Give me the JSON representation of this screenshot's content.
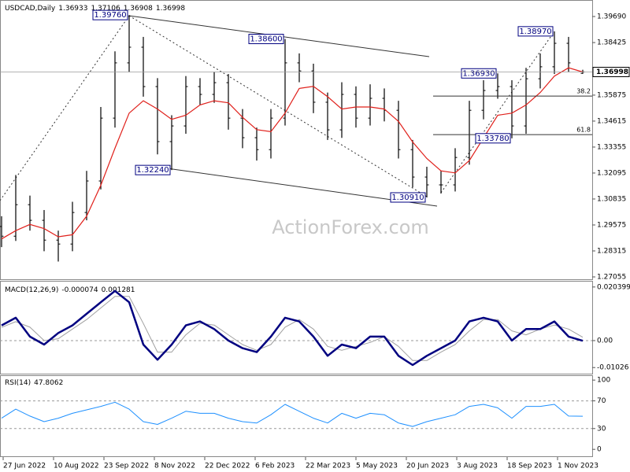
{
  "chart_data": [
    {
      "type": "ohlc",
      "header": {
        "symbol": "USDCAD,Daily",
        "open": 1.36933,
        "high": 1.37106,
        "low": 1.36908,
        "close": 1.36998
      },
      "watermark": "ActionForex.com",
      "x": [
        1,
        10,
        19,
        28,
        37,
        46,
        55,
        64,
        73,
        82,
        91,
        100,
        109,
        118,
        127,
        136,
        145,
        154,
        163,
        172,
        181,
        190,
        199,
        208,
        217,
        226,
        235,
        244,
        253,
        262,
        271,
        280,
        289,
        298,
        307,
        316,
        325,
        334,
        343,
        352,
        361,
        370
      ],
      "xlim": [
        0,
        376
      ],
      "xticks": [
        {
          "value": 2,
          "label": "27 Jun 2022"
        },
        {
          "value": 34,
          "label": "10 Aug 2022"
        },
        {
          "value": 66,
          "label": "23 Sep 2022"
        },
        {
          "value": 98,
          "label": "8 Nov 2022"
        },
        {
          "value": 130,
          "label": "22 Dec 2022"
        },
        {
          "value": 162,
          "label": "6 Feb 2023"
        },
        {
          "value": 194,
          "label": "22 Mar 2023"
        },
        {
          "value": 226,
          "label": "5 May 2023"
        },
        {
          "value": 258,
          "label": "20 Jun 2023"
        },
        {
          "value": 290,
          "label": "3 Aug 2023"
        },
        {
          "value": 322,
          "label": "18 Sep 2023"
        },
        {
          "value": 354,
          "label": "1 Nov 2023"
        }
      ],
      "open": [
        1.295,
        1.2903,
        1.3056,
        1.298,
        1.2884,
        1.2865,
        1.3018,
        1.3171,
        1.3476,
        1.3744,
        1.382,
        1.3629,
        1.3362,
        1.3438,
        1.3629,
        1.3591,
        1.3648,
        1.3476,
        1.3381,
        1.3323,
        1.3476,
        1.3744,
        1.3705,
        1.3553,
        1.3419,
        1.3591,
        1.3476,
        1.3572,
        1.3514,
        1.3323,
        1.319,
        1.3152,
        1.3152,
        1.3285,
        1.3514,
        1.361,
        1.3629,
        1.3438,
        1.3667,
        1.3725,
        1.3839,
        1.36933
      ],
      "high": [
        1.3,
        1.32,
        1.31,
        1.303,
        1.293,
        1.307,
        1.322,
        1.353,
        1.38,
        1.3976,
        1.387,
        1.367,
        1.349,
        1.368,
        1.367,
        1.37,
        1.369,
        1.352,
        1.343,
        1.352,
        1.386,
        1.379,
        1.374,
        1.36,
        1.365,
        1.363,
        1.364,
        1.362,
        1.356,
        1.337,
        1.324,
        1.322,
        1.333,
        1.356,
        1.366,
        1.3693,
        1.366,
        1.372,
        1.379,
        1.3897,
        1.387,
        1.37106
      ],
      "low": [
        1.285,
        1.288,
        1.293,
        1.283,
        1.278,
        1.283,
        1.298,
        1.313,
        1.343,
        1.37,
        1.358,
        1.33,
        1.3224,
        1.34,
        1.354,
        1.355,
        1.342,
        1.333,
        1.327,
        1.328,
        1.344,
        1.365,
        1.35,
        1.337,
        1.338,
        1.343,
        1.344,
        1.346,
        1.328,
        1.314,
        1.3091,
        1.311,
        1.312,
        1.325,
        1.347,
        1.357,
        1.3378,
        1.34,
        1.362,
        1.369,
        1.37,
        1.36908
      ],
      "close": [
        1.2903,
        1.3056,
        1.298,
        1.2884,
        1.2865,
        1.3018,
        1.3171,
        1.3476,
        1.3744,
        1.382,
        1.3629,
        1.3362,
        1.3438,
        1.3629,
        1.3591,
        1.3648,
        1.3476,
        1.3381,
        1.3323,
        1.3476,
        1.3744,
        1.3705,
        1.3553,
        1.3419,
        1.3591,
        1.3476,
        1.3572,
        1.3514,
        1.3323,
        1.319,
        1.3152,
        1.3152,
        1.3285,
        1.3514,
        1.361,
        1.3629,
        1.3438,
        1.3667,
        1.3725,
        1.3839,
        1.3744,
        1.36998
      ],
      "bar_color": "#000000",
      "ma": {
        "color": "#e0201b",
        "values": [
          1.289,
          1.293,
          1.296,
          1.294,
          1.29,
          1.291,
          1.3,
          1.315,
          1.333,
          1.35,
          1.356,
          1.352,
          1.347,
          1.349,
          1.354,
          1.356,
          1.355,
          1.348,
          1.342,
          1.341,
          1.35,
          1.362,
          1.363,
          1.358,
          1.352,
          1.353,
          1.353,
          1.352,
          1.346,
          1.336,
          1.328,
          1.322,
          1.321,
          1.327,
          1.338,
          1.349,
          1.35,
          1.354,
          1.36,
          1.368,
          1.372,
          1.37
        ]
      },
      "ylim": [
        1.2694,
        1.403
      ],
      "yticks": [
        {
          "value": 1.3969,
          "label": "1.39690"
        },
        1.38425,
        1.35875,
        1.34615,
        1.33355,
        1.32095,
        1.30835,
        1.29575,
        1.28315,
        1.27055
      ],
      "annotations": [
        {
          "label": "1.39760",
          "value": 1.3976,
          "x": 82
        },
        {
          "label": "1.38600",
          "value": 1.386,
          "x": 181
        },
        {
          "label": "1.32240",
          "value": 1.3224,
          "x": 109
        },
        {
          "label": "1.30910",
          "value": 1.3091,
          "x": 271
        },
        {
          "label": "1.36930",
          "value": 1.3693,
          "x": 316
        },
        {
          "label": "1.33780",
          "value": 1.3378,
          "x": 325
        },
        {
          "label": "1.38970",
          "value": 1.3897,
          "x": 352
        }
      ],
      "annotation_color": "#000080",
      "levels": [
        {
          "label": "38.2",
          "value": 1.3583
        },
        {
          "label": "61.8",
          "value": 1.3396
        }
      ]
    },
    {
      "type": "line",
      "title": "MACD(12,26,9)",
      "readout": [
        -7.4e-05,
        0.001281
      ],
      "series": [
        {
          "color": "#000080",
          "width": 2.5,
          "values": [
            0.0058,
            0.0087,
            0.0015,
            -0.0015,
            0.0029,
            0.0058,
            0.0102,
            0.0146,
            0.0189,
            0.0146,
            -0.0015,
            -0.0073,
            -0.0015,
            0.0058,
            0.0073,
            0.0044,
            0.0,
            -0.0029,
            -0.0044,
            0.0015,
            0.0087,
            0.0073,
            0.0015,
            -0.0058,
            -0.0015,
            -0.0029,
            0.0015,
            0.0015,
            -0.0058,
            -0.0093,
            -0.0058,
            -0.0029,
            0.0,
            0.0073,
            0.0087,
            0.0073,
            0.0,
            0.0044,
            0.0044,
            0.0073,
            0.0015,
            -7.4e-05
          ]
        },
        {
          "color": "#a0a0a0",
          "width": 1,
          "values": [
            0.005,
            0.0072,
            0.0051,
            0.0,
            0.0007,
            0.0044,
            0.008,
            0.0124,
            0.0168,
            0.0168,
            0.0065,
            -0.0044,
            -0.0044,
            0.0022,
            0.0066,
            0.0059,
            0.0022,
            -0.0015,
            -0.0037,
            -0.0015,
            0.0051,
            0.008,
            0.0044,
            -0.0022,
            -0.0037,
            -0.0022,
            -0.0007,
            0.0015,
            -0.0022,
            -0.0076,
            -0.0076,
            -0.0044,
            -0.0015,
            0.0037,
            0.008,
            0.008,
            0.0037,
            0.0022,
            0.0044,
            0.0059,
            0.0044,
            0.001281
          ]
        }
      ],
      "ylim": [
        -0.01259,
        0.02244
      ],
      "yticks": [
        0.020399,
        {
          "value": 0,
          "label": "0.00"
        },
        -0.01026
      ],
      "levels": [
        0
      ]
    },
    {
      "type": "line",
      "title": "RSI(14)",
      "readout": 47.8062,
      "series": [
        {
          "color": "#1e90ff",
          "width": 1,
          "values": [
            45,
            58,
            48,
            40,
            45,
            52,
            57,
            62,
            68,
            58,
            40,
            36,
            45,
            55,
            52,
            52,
            45,
            40,
            38,
            50,
            65,
            55,
            45,
            38,
            52,
            45,
            52,
            50,
            38,
            33,
            40,
            45,
            50,
            62,
            65,
            60,
            45,
            62,
            62,
            65,
            48,
            47.8062
          ]
        }
      ],
      "ylim": [
        -10,
        107
      ],
      "yticks": [
        100,
        70,
        30,
        0
      ],
      "levels": [
        70,
        30
      ]
    }
  ]
}
